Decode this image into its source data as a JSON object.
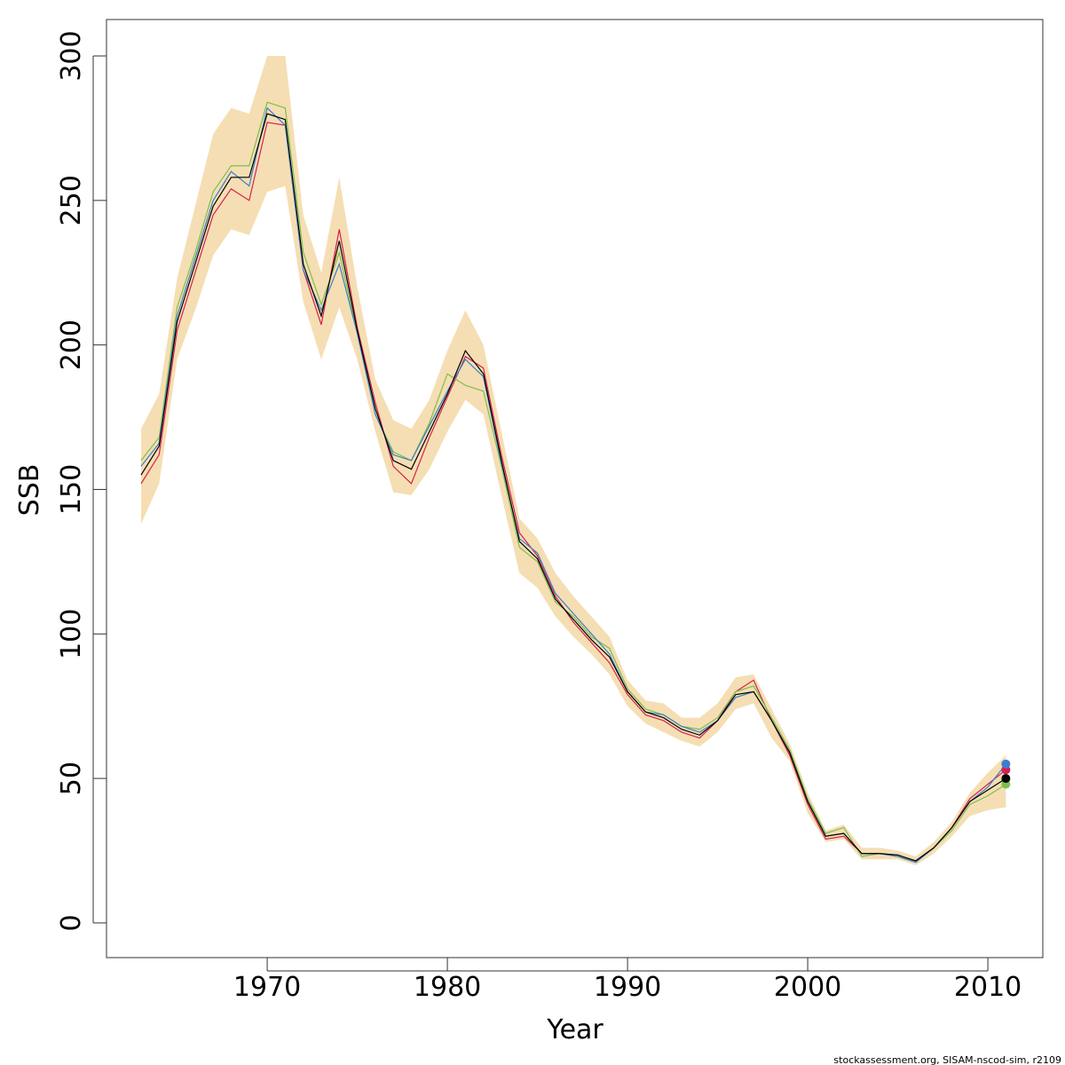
{
  "chart_data": {
    "type": "line",
    "x_label": "Year",
    "y_label": "SSB",
    "footer": "stockassessment.org, SISAM-nscod-sim, r2109",
    "x": [
      1963,
      1964,
      1965,
      1966,
      1967,
      1968,
      1969,
      1970,
      1971,
      1972,
      1973,
      1974,
      1975,
      1976,
      1977,
      1978,
      1979,
      1980,
      1981,
      1982,
      1983,
      1984,
      1985,
      1986,
      1987,
      1988,
      1989,
      1990,
      1991,
      1992,
      1993,
      1994,
      1995,
      1996,
      1997,
      1998,
      1999,
      2000,
      2001,
      2002,
      2003,
      2004,
      2005,
      2006,
      2007,
      2008,
      2009,
      2010,
      2011
    ],
    "band": {
      "color": "#f5deb3",
      "upper": [
        171,
        183,
        223,
        248,
        273,
        282,
        280,
        300,
        300,
        245,
        225,
        258,
        220,
        188,
        174,
        171,
        181,
        198,
        212,
        200,
        170,
        140,
        133,
        121,
        113,
        106,
        99,
        84,
        77,
        76,
        71,
        71,
        76,
        85,
        86,
        74,
        62,
        45,
        32,
        34,
        26,
        26,
        25,
        23,
        28,
        35,
        45,
        52,
        58
      ],
      "lower": [
        138,
        152,
        195,
        212,
        231,
        240,
        238,
        253,
        255,
        215,
        195,
        213,
        195,
        170,
        149,
        148,
        157,
        170,
        181,
        176,
        148,
        121,
        116,
        106,
        99,
        93,
        86,
        75,
        69,
        66,
        63,
        61,
        66,
        74,
        76,
        64,
        56,
        38,
        28,
        29,
        22,
        22,
        22,
        20,
        24,
        30,
        37,
        39,
        40
      ]
    },
    "series": [
      {
        "color": "#d6204f",
        "values": [
          152,
          162,
          205,
          225,
          245,
          254,
          250,
          277,
          276,
          226,
          207,
          240,
          206,
          180,
          158,
          152,
          168,
          182,
          196,
          192,
          162,
          135,
          127,
          113,
          104,
          97,
          90,
          79,
          72,
          70,
          66,
          64,
          70,
          80,
          84,
          70,
          58,
          41,
          29,
          30,
          24,
          24,
          23,
          21,
          26,
          33,
          43,
          48,
          53
        ]
      },
      {
        "color": "#7cc04a",
        "values": [
          160,
          168,
          213,
          232,
          253,
          262,
          262,
          284,
          282,
          232,
          214,
          232,
          204,
          176,
          163,
          160,
          173,
          190,
          186,
          184,
          158,
          130,
          125,
          111,
          106,
          99,
          95,
          81,
          74,
          72,
          68,
          67,
          71,
          80,
          82,
          71,
          60,
          43,
          31,
          33,
          23,
          24,
          23,
          21.5,
          26,
          32,
          41,
          44,
          48
        ]
      },
      {
        "color": "#3a7fd0",
        "values": [
          158,
          166,
          210,
          230,
          250,
          260,
          255,
          282,
          276,
          226,
          212,
          228,
          204,
          176,
          162,
          160,
          172,
          184,
          195,
          189,
          159,
          133,
          128,
          114,
          107,
          100,
          93,
          80,
          73,
          72,
          68,
          66,
          70,
          78,
          80,
          70,
          59,
          42,
          30,
          31,
          24,
          24,
          23,
          21,
          26,
          33,
          42,
          47,
          55
        ]
      },
      {
        "color": "#000000",
        "values": [
          155,
          165,
          208,
          228,
          248,
          258,
          258,
          280,
          278,
          228,
          210,
          236,
          205,
          178,
          160,
          157,
          170,
          183,
          198,
          190,
          160,
          132,
          126,
          112,
          105,
          98,
          92,
          80,
          73,
          71,
          67,
          65,
          70,
          79,
          80,
          70,
          59,
          42,
          30,
          31,
          24,
          24,
          23.5,
          21.5,
          26,
          33,
          42,
          46,
          50
        ]
      }
    ],
    "xlim": [
      1961.08,
      2013.05
    ],
    "ylim": [
      -12,
      312.6
    ],
    "xticks": [
      1970,
      1980,
      1990,
      2000,
      2010
    ],
    "yticks": [
      0,
      50,
      100,
      150,
      200,
      250,
      300
    ],
    "end_points": true
  }
}
